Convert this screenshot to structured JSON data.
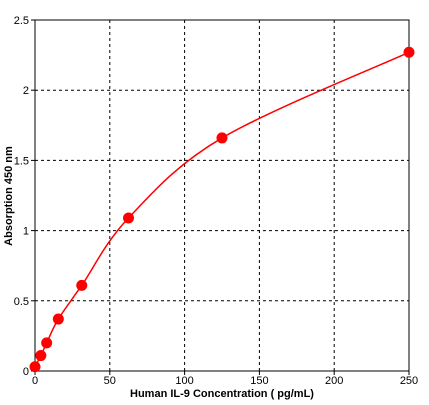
{
  "chart_data": {
    "type": "scatter",
    "title": "",
    "xlabel": "Human IL-9 Concentration ( pg/mL)",
    "ylabel": "Absorption 450 nm",
    "xlim": [
      0,
      250
    ],
    "ylim": [
      0,
      2.5
    ],
    "x_ticks": [
      "0",
      "50",
      "100",
      "150",
      "200",
      "250"
    ],
    "y_ticks": [
      "0",
      "0.5",
      "1",
      "1.5",
      "2",
      "2.5"
    ],
    "grid": true,
    "legend": "none",
    "series": [
      {
        "x": [
          0,
          3.9,
          7.8,
          15.6,
          31.25,
          62.5,
          125,
          250
        ],
        "y": [
          0.03,
          0.11,
          0.2,
          0.37,
          0.61,
          1.09,
          1.66,
          2.27
        ],
        "marker": "circle",
        "color": "#ff0000",
        "fit_line": "smooth-curve"
      }
    ]
  }
}
